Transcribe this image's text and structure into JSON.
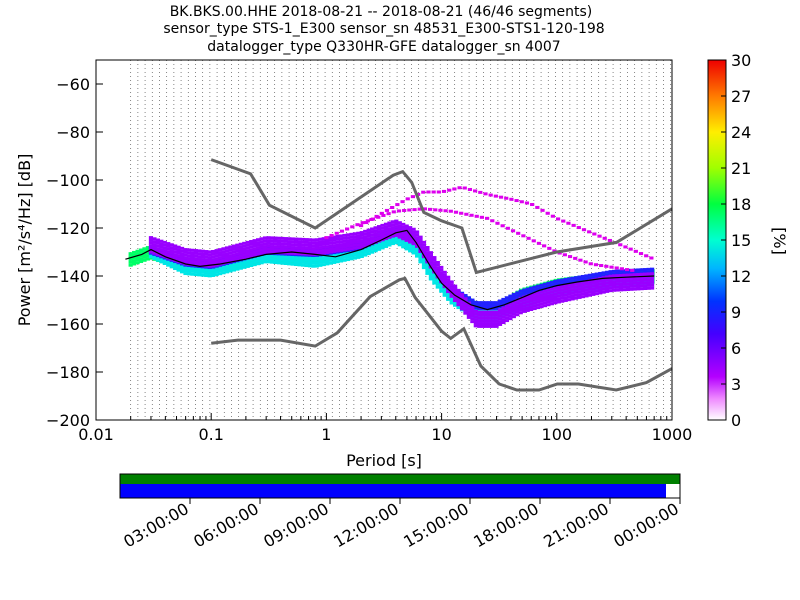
{
  "chart_data": {
    "type": "heatmap",
    "title_lines": [
      "BK.BKS.00.HHE   2018-08-21 -- 2018-08-21  (46/46 segments)",
      "sensor_type STS-1_E300 sensor_sn 48531_E300-STS1-120-198",
      "datalogger_type Q330HR-GFE datalogger_sn 4007"
    ],
    "xlabel": "Period [s]",
    "ylabel": "Power [m²/s⁴/Hz] [dB]",
    "xscale": "log",
    "xlim": [
      0.01,
      1000
    ],
    "ylim": [
      -200,
      -50
    ],
    "x_ticks": [
      {
        "v": 0.01,
        "label": "0.01"
      },
      {
        "v": 0.1,
        "label": "0.1"
      },
      {
        "v": 1,
        "label": "1"
      },
      {
        "v": 10,
        "label": "10"
      },
      {
        "v": 100,
        "label": "100"
      },
      {
        "v": 1000,
        "label": "1000"
      }
    ],
    "y_ticks": [
      {
        "v": -60,
        "label": "−60"
      },
      {
        "v": -80,
        "label": "−80"
      },
      {
        "v": -100,
        "label": "−100"
      },
      {
        "v": -120,
        "label": "−120"
      },
      {
        "v": -140,
        "label": "−140"
      },
      {
        "v": -160,
        "label": "−160"
      },
      {
        "v": -180,
        "label": "−180"
      },
      {
        "v": -200,
        "label": "−200"
      }
    ],
    "grid": "dotted vertical lines at period bin centers",
    "colorbar": {
      "label": "[%]",
      "range": [
        0,
        30
      ],
      "ticks": [
        "0",
        "3",
        "6",
        "9",
        "12",
        "15",
        "18",
        "21",
        "24",
        "27",
        "30"
      ]
    },
    "noise_models": [
      {
        "name": "high-noise-model",
        "points": [
          [
            0.1,
            -91.5
          ],
          [
            0.22,
            -97.4
          ],
          [
            0.32,
            -110.5
          ],
          [
            0.8,
            -120
          ],
          [
            3.8,
            -98
          ],
          [
            4.6,
            -96.5
          ],
          [
            5.5,
            -101
          ],
          [
            7,
            -113.5
          ],
          [
            10,
            -117
          ],
          [
            15,
            -120
          ],
          [
            20,
            -138.5
          ],
          [
            100,
            -130
          ],
          [
            330,
            -126
          ],
          [
            1000,
            -112
          ]
        ]
      },
      {
        "name": "low-noise-model",
        "points": [
          [
            0.1,
            -168
          ],
          [
            0.17,
            -166.7
          ],
          [
            0.4,
            -166.7
          ],
          [
            0.8,
            -169.2
          ],
          [
            1.24,
            -163.7
          ],
          [
            2.4,
            -148.6
          ],
          [
            4.3,
            -141.6
          ],
          [
            4.8,
            -141
          ],
          [
            5.9,
            -149
          ],
          [
            10,
            -163
          ],
          [
            12,
            -166
          ],
          [
            15.6,
            -162
          ],
          [
            21.9,
            -177.5
          ],
          [
            31.6,
            -185
          ],
          [
            45,
            -187.5
          ],
          [
            70,
            -187.5
          ],
          [
            101,
            -185
          ],
          [
            154,
            -185
          ],
          [
            328,
            -187.5
          ],
          [
            600,
            -184.4
          ],
          [
            1000,
            -178.6
          ]
        ]
      }
    ],
    "mean_psd": {
      "name": "mean",
      "points": [
        [
          0.018,
          -133
        ],
        [
          0.025,
          -131
        ],
        [
          0.03,
          -129
        ],
        [
          0.04,
          -132
        ],
        [
          0.06,
          -135
        ],
        [
          0.08,
          -136
        ],
        [
          0.12,
          -135
        ],
        [
          0.2,
          -133
        ],
        [
          0.3,
          -131
        ],
        [
          0.5,
          -130
        ],
        [
          0.8,
          -131
        ],
        [
          1.2,
          -132
        ],
        [
          2,
          -129
        ],
        [
          3,
          -125
        ],
        [
          4,
          -122
        ],
        [
          5,
          -121
        ],
        [
          6,
          -126
        ],
        [
          8,
          -136
        ],
        [
          10,
          -143
        ],
        [
          13,
          -148
        ],
        [
          18,
          -152
        ],
        [
          25,
          -154
        ],
        [
          35,
          -152
        ],
        [
          50,
          -149
        ],
        [
          70,
          -146
        ],
        [
          100,
          -144
        ],
        [
          150,
          -142.5
        ],
        [
          250,
          -141
        ],
        [
          400,
          -140.5
        ],
        [
          700,
          -140
        ]
      ]
    },
    "psd_bands": [
      {
        "name": "core-density",
        "color": "#00ff66",
        "points": [
          [
            0.02,
            -133
          ],
          [
            0.03,
            -130
          ],
          [
            0.06,
            -135
          ],
          [
            0.1,
            -136
          ],
          [
            0.3,
            -131
          ],
          [
            0.8,
            -132
          ],
          [
            2,
            -128
          ],
          [
            4,
            -123
          ],
          [
            5,
            -122
          ],
          [
            6,
            -127
          ],
          [
            8,
            -137
          ],
          [
            12,
            -147
          ],
          [
            20,
            -154
          ],
          [
            30,
            -154
          ],
          [
            50,
            -148
          ],
          [
            100,
            -144
          ],
          [
            300,
            -141
          ],
          [
            700,
            -140
          ]
        ],
        "spread": 2.5
      },
      {
        "name": "cyan-density",
        "color": "#00e6e6",
        "points": [
          [
            0.03,
            -130
          ],
          [
            0.06,
            -137
          ],
          [
            0.1,
            -138
          ],
          [
            0.3,
            -132
          ],
          [
            0.8,
            -134
          ],
          [
            2,
            -130
          ],
          [
            4,
            -124
          ],
          [
            6,
            -129
          ],
          [
            8,
            -139
          ],
          [
            12,
            -149
          ],
          [
            20,
            -156
          ],
          [
            30,
            -156
          ],
          [
            50,
            -151
          ],
          [
            100,
            -146
          ],
          [
            300,
            -142
          ],
          [
            700,
            -141
          ]
        ],
        "spread": 2
      },
      {
        "name": "blue-density",
        "color": "#2222ff",
        "points": [
          [
            0.03,
            -129
          ],
          [
            0.06,
            -134
          ],
          [
            0.1,
            -135
          ],
          [
            0.3,
            -129
          ],
          [
            0.8,
            -130
          ],
          [
            2,
            -127
          ],
          [
            4,
            -121
          ],
          [
            6,
            -125
          ],
          [
            8,
            -134
          ],
          [
            12,
            -145
          ],
          [
            20,
            -152
          ],
          [
            30,
            -152
          ],
          [
            50,
            -147
          ],
          [
            100,
            -143
          ],
          [
            300,
            -139
          ],
          [
            700,
            -138
          ]
        ],
        "spread": 1.5
      },
      {
        "name": "low-density",
        "color": "#9900ff",
        "points": [
          [
            0.03,
            -127
          ],
          [
            0.06,
            -132
          ],
          [
            0.1,
            -133
          ],
          [
            0.3,
            -127
          ],
          [
            0.8,
            -128
          ],
          [
            2,
            -125
          ],
          [
            4,
            -120
          ],
          [
            6,
            -124
          ],
          [
            8,
            -133
          ],
          [
            12,
            -145
          ],
          [
            20,
            -158
          ],
          [
            30,
            -158
          ],
          [
            50,
            -152
          ],
          [
            100,
            -148
          ],
          [
            300,
            -143
          ],
          [
            700,
            -142
          ]
        ],
        "spread": 3
      }
    ],
    "outliers": [
      {
        "name": "upper-outliers",
        "color": "#dd00ee",
        "points": [
          [
            2,
            -119
          ],
          [
            3,
            -114
          ],
          [
            5,
            -108
          ],
          [
            7,
            -105
          ],
          [
            10,
            -105
          ],
          [
            15,
            -103
          ],
          [
            25,
            -106
          ],
          [
            40,
            -108
          ],
          [
            60,
            -110
          ],
          [
            100,
            -116
          ],
          [
            200,
            -122
          ],
          [
            400,
            -128
          ],
          [
            700,
            -133
          ]
        ]
      },
      {
        "name": "mid-outliers",
        "color": "#dd00ee",
        "points": [
          [
            1,
            -124
          ],
          [
            2,
            -118
          ],
          [
            4,
            -113
          ],
          [
            7,
            -112
          ],
          [
            12,
            -113
          ],
          [
            25,
            -116
          ],
          [
            50,
            -123
          ],
          [
            100,
            -130
          ],
          [
            200,
            -135
          ],
          [
            500,
            -138
          ]
        ]
      }
    ],
    "time_axis": {
      "tick_labels": [
        "03:00:00",
        "06:00:00",
        "09:00:00",
        "12:00:00",
        "15:00:00",
        "18:00:00",
        "21:00:00",
        "00:00:00"
      ],
      "coverage_top_color": "#008000",
      "coverage_bottom_color": "#0000ff",
      "coverage_fraction": 0.975
    }
  }
}
